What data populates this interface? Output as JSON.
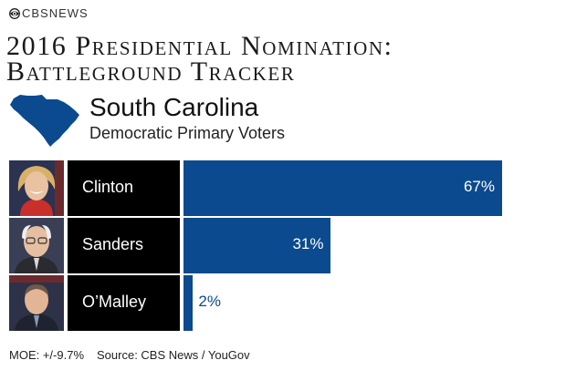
{
  "brand": {
    "name": "CBSNEWS",
    "icon": "cbs-eye-icon"
  },
  "title": {
    "line1": "2016 Presidential Nomination:",
    "line2": "Battleground Tracker"
  },
  "state": {
    "name": "South Carolina",
    "subtitle": "Democratic Primary Voters",
    "map_icon": "south-carolina-map-icon",
    "color": "#0b4a8e"
  },
  "chart_data": {
    "type": "bar",
    "orientation": "horizontal",
    "categories": [
      "Clinton",
      "Sanders",
      "O’Malley"
    ],
    "values": [
      67,
      31,
      2
    ],
    "value_labels": [
      "67%",
      "31%",
      "2%"
    ],
    "bar_color": "#0b4a8e",
    "xlim": [
      0,
      100
    ]
  },
  "footer": {
    "moe": "MOE: +/-9.7%",
    "source": "Source: CBS News / YouGov"
  }
}
